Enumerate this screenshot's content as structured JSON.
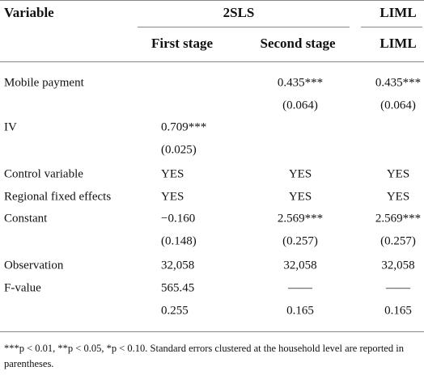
{
  "table": {
    "header": {
      "variable": "Variable",
      "group1": "2SLS",
      "group2": "LIML",
      "columns": [
        "First stage",
        "Second stage",
        "LIML"
      ]
    },
    "rows": [
      [
        "Mobile payment",
        null,
        "0.435***",
        "0.435***"
      ],
      [
        null,
        null,
        "(0.064)",
        "(0.064)"
      ],
      [
        "IV",
        "0.709***",
        null,
        null
      ],
      [
        null,
        "(0.025)",
        null,
        null
      ],
      [
        "Control variable",
        "YES",
        "YES",
        "YES"
      ],
      [
        "Regional fixed effects",
        "YES",
        "YES",
        "YES"
      ],
      [
        "Constant",
        "−0.160",
        "2.569***",
        "2.569***"
      ],
      [
        null,
        "(0.148)",
        "(0.257)",
        "(0.257)"
      ],
      [
        "Observation",
        "32,058",
        "32,058",
        "32,058"
      ],
      [
        "F-value",
        "565.45",
        "——",
        "——"
      ],
      [
        null,
        "0.255",
        "0.165",
        "0.165"
      ]
    ],
    "footnote": "***p < 0.01, **p < 0.05, *p < 0.10. Standard errors clustered at the household level are reported in parentheses."
  }
}
